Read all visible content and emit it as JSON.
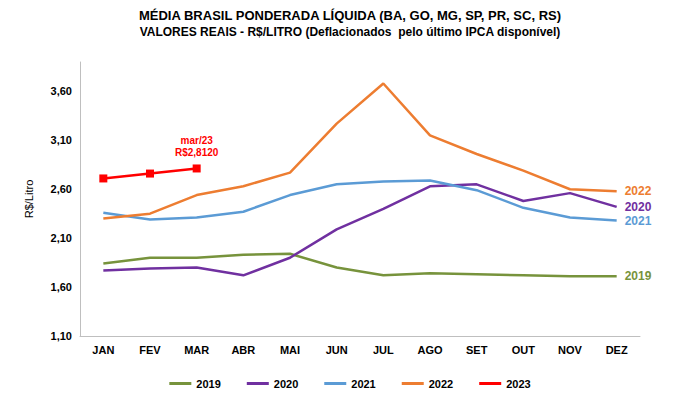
{
  "chart_data": {
    "type": "line",
    "title": "MÉDIA BRASIL PONDERADA LÍQUIDA (BA, GO, MG, SP, PR, SC, RS)",
    "subtitle": "VALORES REAIS - R$/LITRO (Deflacionados  pelo último IPCA disponível)",
    "y_label": "R$/Litro",
    "categories": [
      "JAN",
      "FEV",
      "MAR",
      "ABR",
      "MAI",
      "JUN",
      "JUL",
      "AGO",
      "SET",
      "OUT",
      "NOV",
      "DEZ"
    ],
    "series": [
      {
        "name": "2019",
        "color": "#77933c",
        "marker": "none",
        "values": [
          1.84,
          1.9,
          1.9,
          1.93,
          1.94,
          1.8,
          1.72,
          1.74,
          1.73,
          1.72,
          1.71,
          1.71
        ]
      },
      {
        "name": "2020",
        "color": "#7030a0",
        "marker": "none",
        "values": [
          1.77,
          1.79,
          1.8,
          1.72,
          1.9,
          2.19,
          2.4,
          2.63,
          2.65,
          2.48,
          2.56,
          2.42
        ]
      },
      {
        "name": "2021",
        "color": "#5b9bd5",
        "marker": "none",
        "values": [
          2.36,
          2.29,
          2.31,
          2.37,
          2.54,
          2.65,
          2.68,
          2.69,
          2.59,
          2.41,
          2.31,
          2.28
        ]
      },
      {
        "name": "2022",
        "color": "#ed7d31",
        "marker": "none",
        "values": [
          2.3,
          2.35,
          2.54,
          2.63,
          2.77,
          3.27,
          3.68,
          3.15,
          2.96,
          2.79,
          2.6,
          2.58
        ]
      },
      {
        "name": "2023",
        "color": "#ff0000",
        "marker": "square",
        "values": [
          2.71,
          2.76,
          2.812,
          null,
          null,
          null,
          null,
          null,
          null,
          null,
          null,
          null
        ]
      }
    ],
    "annotations": [
      {
        "series": "2023",
        "x": "MAR",
        "text": [
          "mar/23",
          "R$2,8120"
        ]
      }
    ],
    "ylim": [
      1.1,
      3.9
    ],
    "yticks": [
      {
        "value": 1.1,
        "label": "1,10"
      },
      {
        "value": 1.6,
        "label": "1,60"
      },
      {
        "value": 2.1,
        "label": "2,10"
      },
      {
        "value": 2.6,
        "label": "2,60"
      },
      {
        "value": 3.1,
        "label": "3,10"
      },
      {
        "value": 3.6,
        "label": "3,60"
      }
    ],
    "grid": false,
    "legend": "bottom"
  }
}
